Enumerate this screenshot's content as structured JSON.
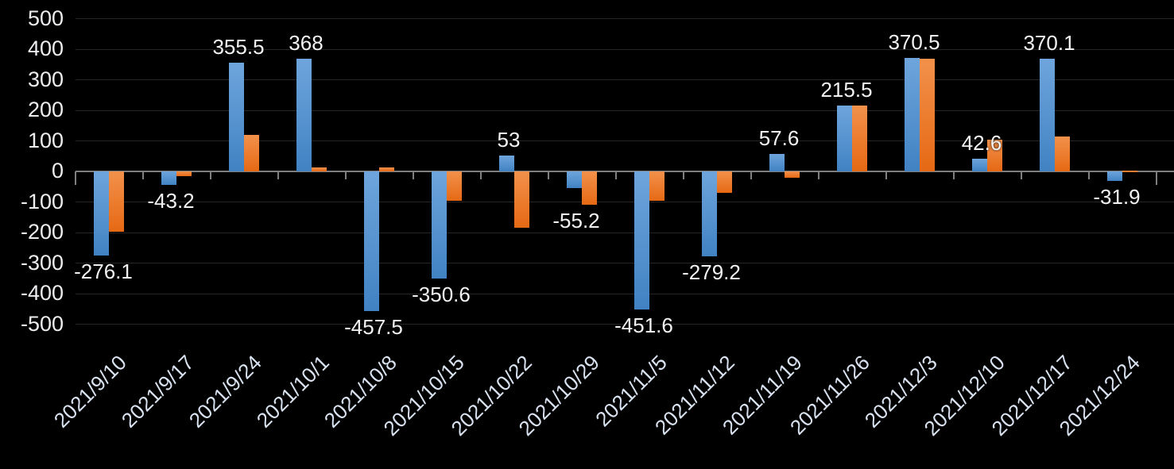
{
  "chart_data": {
    "type": "bar",
    "title": "",
    "xlabel": "",
    "ylabel": "",
    "ylim": [
      -500,
      500
    ],
    "yticks": [
      500,
      400,
      300,
      200,
      100,
      0,
      -100,
      -200,
      -300,
      -400,
      -500
    ],
    "grid": true,
    "legend_position": "none",
    "background_color": "#000000",
    "categories": [
      "2021/9/10",
      "2021/9/17",
      "2021/9/24",
      "2021/10/1",
      "2021/10/8",
      "2021/10/15",
      "2021/10/22",
      "2021/10/29",
      "2021/11/5",
      "2021/11/12",
      "2021/11/19",
      "2021/11/26",
      "2021/12/3",
      "2021/12/10",
      "2021/12/17",
      "2021/12/24"
    ],
    "series": [
      {
        "name": "blue-series",
        "color": "#4f93d8",
        "values": [
          -276.1,
          -43.2,
          355.5,
          368,
          -457.5,
          -350.6,
          53,
          -55.2,
          -451.6,
          -279.2,
          57.6,
          215.5,
          370.5,
          42.6,
          370.1,
          -31.9
        ],
        "data_labels": [
          "-276.1",
          "-43.2",
          "355.5",
          "368",
          "-457.5",
          "-350.6",
          "53",
          "-55.2",
          "-451.6",
          "-279.2",
          "57.6",
          "215.5",
          "370.5",
          "42.6",
          "370.1",
          "-31.9"
        ]
      },
      {
        "name": "orange-series",
        "color": "#ed7d31",
        "values": [
          -198,
          -15,
          120,
          14,
          14,
          -97,
          -185,
          -110,
          -97,
          -71,
          -20,
          216,
          370,
          105,
          113,
          3
        ],
        "data_labels": []
      }
    ],
    "axis_colors": {
      "axis_line": "#7f7f7f",
      "gridline": "#262626",
      "y_tick_text": "#ededf0",
      "x_tick_text": "#d9e2f0",
      "value_label_text": "#f2f2f2"
    }
  }
}
